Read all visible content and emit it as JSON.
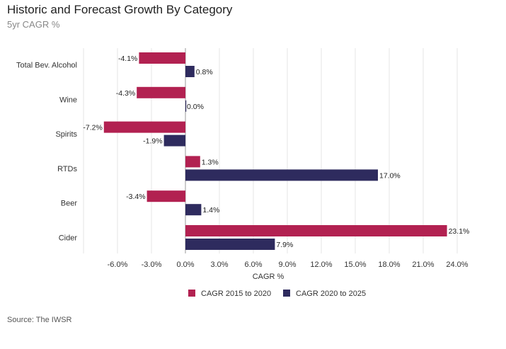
{
  "header": {
    "title": "Historic and Forecast Growth By Category",
    "subtitle": "5yr CAGR %"
  },
  "footer": {
    "source": "Source: The IWSR"
  },
  "colors": {
    "series_2015_2020": "#B22151",
    "series_2020_2025": "#2E2B5E",
    "gridline": "#e6e6e6",
    "zero_line": "#999999"
  },
  "chart_data": {
    "type": "bar",
    "orientation": "horizontal",
    "title": "Historic and Forecast Growth By Category",
    "subtitle": "5yr CAGR %",
    "xlabel": "CAGR %",
    "ylabel": "",
    "categories": [
      "Total Bev. Alcohol",
      "Wine",
      "Spirits",
      "RTDs",
      "Beer",
      "Cider"
    ],
    "series": [
      {
        "name": "CAGR 2015 to 2020",
        "values": [
          -4.1,
          -4.3,
          -7.2,
          1.3,
          -3.4,
          23.1
        ],
        "labels": [
          "-4.1%",
          "-4.3%",
          "-7.2%",
          "1.3%",
          "-3.4%",
          "23.1%"
        ]
      },
      {
        "name": "CAGR 2020 to 2025",
        "values": [
          0.8,
          0.0,
          -1.9,
          17.0,
          1.4,
          7.9
        ],
        "labels": [
          "0.8%",
          "0.0%",
          "-1.9%",
          "17.0%",
          "1.4%",
          "7.9%"
        ]
      }
    ],
    "xlim": [
      -9.0,
      25.0
    ],
    "xticks": [
      -6,
      -3,
      0,
      3,
      6,
      9,
      12,
      15,
      18,
      21,
      24
    ],
    "xtick_labels": [
      "-6.0%",
      "-3.0%",
      "0.0%",
      "3.0%",
      "6.0%",
      "9.0%",
      "12.0%",
      "15.0%",
      "18.0%",
      "21.0%",
      "24.0%"
    ],
    "grid": true,
    "legend_position": "bottom-center"
  }
}
